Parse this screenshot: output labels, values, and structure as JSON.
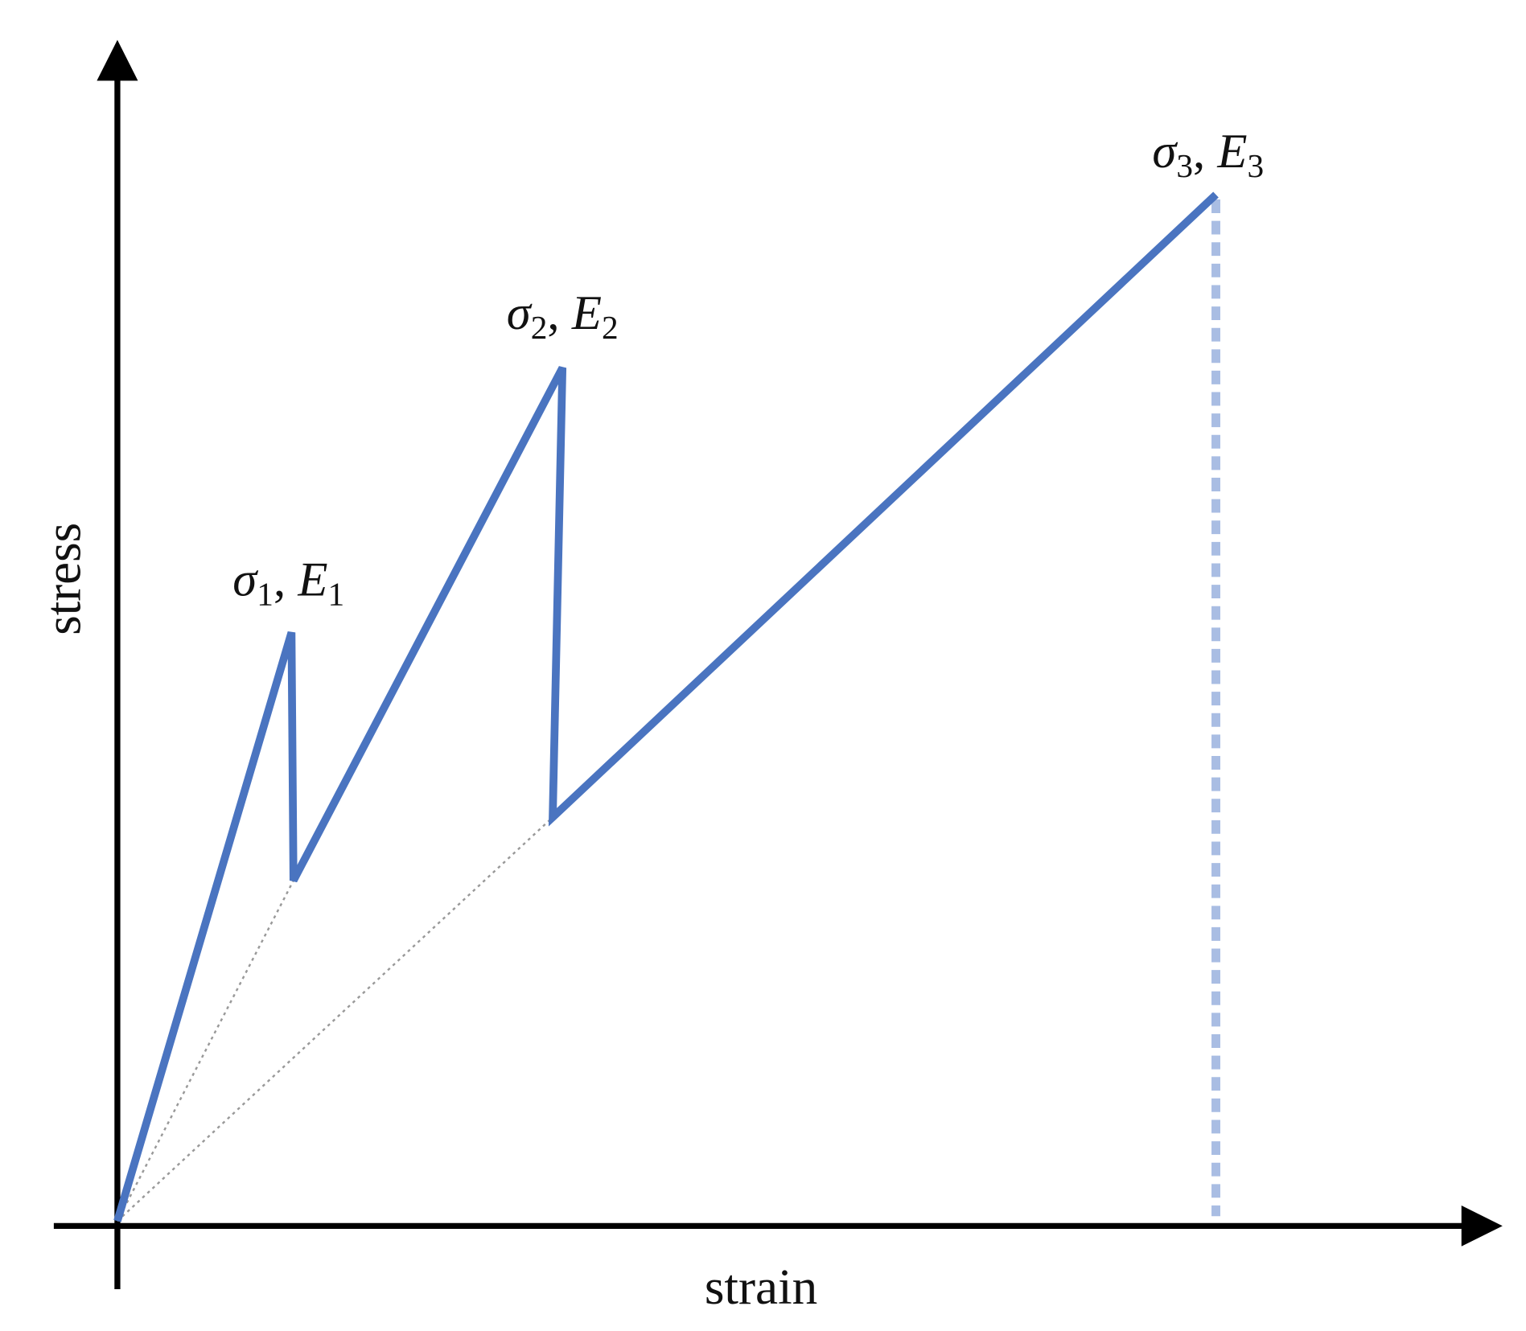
{
  "axes": {
    "x_label": "strain",
    "y_label": "stress"
  },
  "labels": [
    {
      "stress_symbol": "σ",
      "stress_index": "1",
      "separator": ", ",
      "modulus_symbol": "E",
      "modulus_index": "1"
    },
    {
      "stress_symbol": "σ",
      "stress_index": "2",
      "separator": ", ",
      "modulus_symbol": "E",
      "modulus_index": "2"
    },
    {
      "stress_symbol": "σ",
      "stress_index": "3",
      "separator": ", ",
      "modulus_symbol": "E",
      "modulus_index": "3"
    }
  ]
}
